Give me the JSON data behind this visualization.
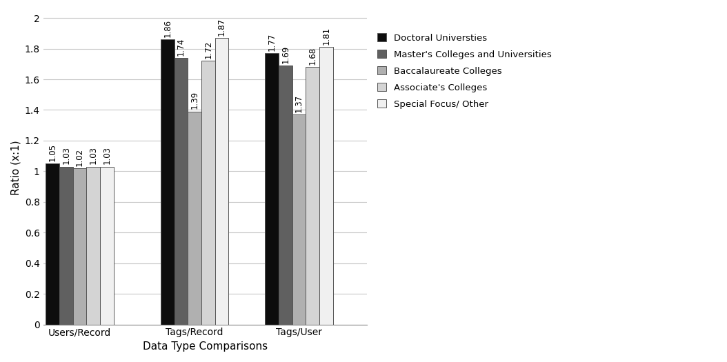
{
  "categories": [
    "Users/Record",
    "Tags/Record",
    "Tags/User"
  ],
  "series": [
    {
      "label": "Doctoral Universties",
      "color": "#0d0d0d",
      "values": [
        1.05,
        1.86,
        1.77
      ]
    },
    {
      "label": "Master's Colleges and Universities",
      "color": "#606060",
      "values": [
        1.03,
        1.74,
        1.69
      ]
    },
    {
      "label": "Baccalaureate Colleges",
      "color": "#b0b0b0",
      "values": [
        1.02,
        1.39,
        1.37
      ]
    },
    {
      "label": "Associate's Colleges",
      "color": "#d4d4d4",
      "values": [
        1.03,
        1.72,
        1.68
      ]
    },
    {
      "label": "Special Focus/ Other",
      "color": "#f0f0f0",
      "values": [
        1.03,
        1.87,
        1.81
      ]
    }
  ],
  "xlabel": "Data Type Comparisons",
  "ylabel": "Ratio (x:1)",
  "ylim": [
    0,
    2.05
  ],
  "yticks": [
    0,
    0.2,
    0.4,
    0.6,
    0.8,
    1.0,
    1.2,
    1.4,
    1.6,
    1.8,
    2.0
  ],
  "bar_width": 0.13,
  "group_positions": [
    0.35,
    1.45,
    2.45
  ],
  "label_fontsize": 8.5,
  "axis_label_fontsize": 11,
  "tick_fontsize": 10,
  "legend_fontsize": 9.5,
  "bar_edge_color": "#555555",
  "background_color": "#ffffff",
  "grid_color": "#c8c8c8"
}
